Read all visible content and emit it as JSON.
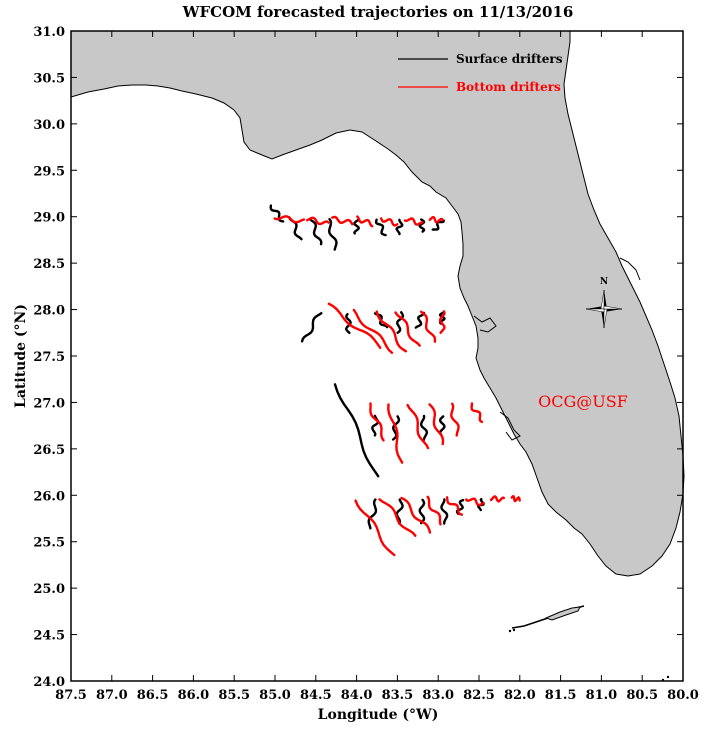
{
  "map": {
    "title": "WFCOM forecasted trajectories on 11/13/2016",
    "xlabel": "Longitude (°W)",
    "ylabel": "Latitude (°N)",
    "x_ticks": [
      "87.5",
      "87.0",
      "86.5",
      "86.0",
      "85.5",
      "85.0",
      "84.5",
      "84.0",
      "83.5",
      "83.0",
      "82.5",
      "82.0",
      "81.5",
      "81.0",
      "80.5",
      "80.0"
    ],
    "y_ticks": [
      "31.0",
      "30.5",
      "30.0",
      "29.5",
      "29.0",
      "28.5",
      "28.0",
      "27.5",
      "27.0",
      "26.5",
      "26.0",
      "25.5",
      "25.0",
      "24.5",
      "24.0"
    ],
    "legend": {
      "surface_label": "Surface drifters",
      "bottom_label": "Bottom drifters",
      "placement": "top-right"
    },
    "compass_label": "N",
    "watermark": "OCG@USF",
    "colors": {
      "land": "#c8c8c8",
      "coastline": "#000000",
      "surface": "#000000",
      "bottom": "#ff0000",
      "watermark": "#ff0000"
    }
  },
  "chart_data": {
    "type": "map-trajectories",
    "xlim": [
      87.5,
      80.0
    ],
    "ylim": [
      24.0,
      31.0
    ],
    "grid": false,
    "legend_placement": "top-right",
    "series": [
      {
        "name": "Surface drifters",
        "color": "#000000",
        "tracks": [
          {
            "start": [
              85.05,
              29.12
            ],
            "end": [
              84.9,
              28.95
            ]
          },
          {
            "start": [
              84.8,
              29.0
            ],
            "end": [
              84.7,
              28.75
            ]
          },
          {
            "start": [
              84.55,
              28.97
            ],
            "end": [
              84.45,
              28.7
            ]
          },
          {
            "start": [
              84.35,
              28.97
            ],
            "end": [
              84.25,
              28.65
            ]
          },
          {
            "start": [
              84.0,
              28.97
            ],
            "end": [
              84.0,
              28.82
            ]
          },
          {
            "start": [
              83.75,
              28.97
            ],
            "end": [
              83.65,
              28.8
            ]
          },
          {
            "start": [
              83.45,
              28.96
            ],
            "end": [
              83.5,
              28.82
            ]
          },
          {
            "start": [
              83.2,
              28.97
            ],
            "end": [
              83.2,
              28.84
            ]
          },
          {
            "start": [
              82.95,
              28.97
            ],
            "end": [
              83.05,
              28.85
            ]
          },
          {
            "start": [
              84.45,
              27.97
            ],
            "end": [
              84.65,
              27.65
            ]
          },
          {
            "start": [
              84.1,
              27.95
            ],
            "end": [
              84.1,
              27.75
            ]
          },
          {
            "start": [
              83.75,
              27.97
            ],
            "end": [
              83.65,
              27.8
            ]
          },
          {
            "start": [
              83.45,
              27.97
            ],
            "end": [
              83.5,
              27.75
            ]
          },
          {
            "start": [
              83.2,
              27.97
            ],
            "end": [
              83.25,
              27.8
            ]
          },
          {
            "start": [
              82.95,
              27.97
            ],
            "end": [
              82.95,
              27.85
            ]
          },
          {
            "start": [
              84.25,
              27.2
            ],
            "end": [
              83.75,
              26.2
            ]
          },
          {
            "start": [
              83.75,
              26.85
            ],
            "end": [
              83.8,
              26.65
            ]
          },
          {
            "start": [
              83.5,
              26.85
            ],
            "end": [
              83.55,
              26.6
            ]
          },
          {
            "start": [
              83.2,
              26.85
            ],
            "end": [
              83.15,
              26.6
            ]
          },
          {
            "start": [
              82.95,
              26.85
            ],
            "end": [
              82.95,
              26.65
            ]
          },
          {
            "start": [
              83.75,
              25.95
            ],
            "end": [
              83.85,
              25.65
            ]
          },
          {
            "start": [
              83.45,
              25.95
            ],
            "end": [
              83.5,
              25.7
            ]
          },
          {
            "start": [
              83.2,
              25.95
            ],
            "end": [
              83.2,
              25.7
            ]
          },
          {
            "start": [
              82.95,
              25.95
            ],
            "end": [
              82.9,
              25.7
            ]
          },
          {
            "start": [
              82.7,
              25.95
            ],
            "end": [
              82.75,
              25.8
            ]
          },
          {
            "start": [
              82.45,
              25.95
            ],
            "end": [
              82.5,
              25.85
            ]
          }
        ]
      },
      {
        "name": "Bottom drifters",
        "color": "#ff0000",
        "tracks": [
          {
            "start": [
              85.0,
              29.0
            ],
            "end": [
              84.65,
              28.95
            ]
          },
          {
            "start": [
              84.6,
              28.98
            ],
            "end": [
              84.35,
              28.92
            ]
          },
          {
            "start": [
              84.3,
              28.98
            ],
            "end": [
              84.05,
              28.93
            ]
          },
          {
            "start": [
              84.0,
              28.98
            ],
            "end": [
              83.8,
              28.92
            ]
          },
          {
            "start": [
              83.7,
              28.98
            ],
            "end": [
              83.5,
              28.92
            ]
          },
          {
            "start": [
              83.4,
              28.98
            ],
            "end": [
              83.2,
              28.92
            ]
          },
          {
            "start": [
              83.1,
              28.98
            ],
            "end": [
              82.95,
              28.95
            ]
          },
          {
            "start": [
              84.35,
              28.05
            ],
            "end": [
              83.7,
              27.6
            ]
          },
          {
            "start": [
              84.05,
              27.98
            ],
            "end": [
              83.55,
              27.55
            ]
          },
          {
            "start": [
              83.75,
              27.98
            ],
            "end": [
              83.4,
              27.55
            ]
          },
          {
            "start": [
              83.5,
              27.98
            ],
            "end": [
              83.25,
              27.6
            ]
          },
          {
            "start": [
              83.2,
              27.98
            ],
            "end": [
              83.05,
              27.65
            ]
          },
          {
            "start": [
              82.95,
              27.98
            ],
            "end": [
              82.95,
              27.75
            ]
          },
          {
            "start": [
              83.85,
              26.98
            ],
            "end": [
              83.65,
              26.6
            ]
          },
          {
            "start": [
              83.6,
              26.98
            ],
            "end": [
              83.45,
              26.35
            ]
          },
          {
            "start": [
              83.35,
              26.98
            ],
            "end": [
              83.15,
              26.5
            ]
          },
          {
            "start": [
              83.1,
              26.98
            ],
            "end": [
              82.95,
              26.55
            ]
          },
          {
            "start": [
              82.85,
              26.98
            ],
            "end": [
              82.75,
              26.65
            ]
          },
          {
            "start": [
              82.6,
              26.98
            ],
            "end": [
              82.45,
              26.8
            ]
          },
          {
            "start": [
              84.0,
              25.95
            ],
            "end": [
              83.55,
              25.35
            ]
          },
          {
            "start": [
              83.7,
              25.97
            ],
            "end": [
              83.3,
              25.55
            ]
          },
          {
            "start": [
              83.45,
              25.97
            ],
            "end": [
              83.1,
              25.6
            ]
          },
          {
            "start": [
              83.15,
              25.97
            ],
            "end": [
              82.95,
              25.7
            ]
          },
          {
            "start": [
              82.9,
              25.97
            ],
            "end": [
              82.7,
              25.8
            ]
          },
          {
            "start": [
              82.65,
              25.97
            ],
            "end": [
              82.45,
              25.9
            ]
          },
          {
            "start": [
              82.35,
              25.97
            ],
            "end": [
              82.2,
              25.95
            ]
          },
          {
            "start": [
              82.1,
              25.97
            ],
            "end": [
              82.0,
              25.95
            ]
          }
        ]
      }
    ]
  }
}
